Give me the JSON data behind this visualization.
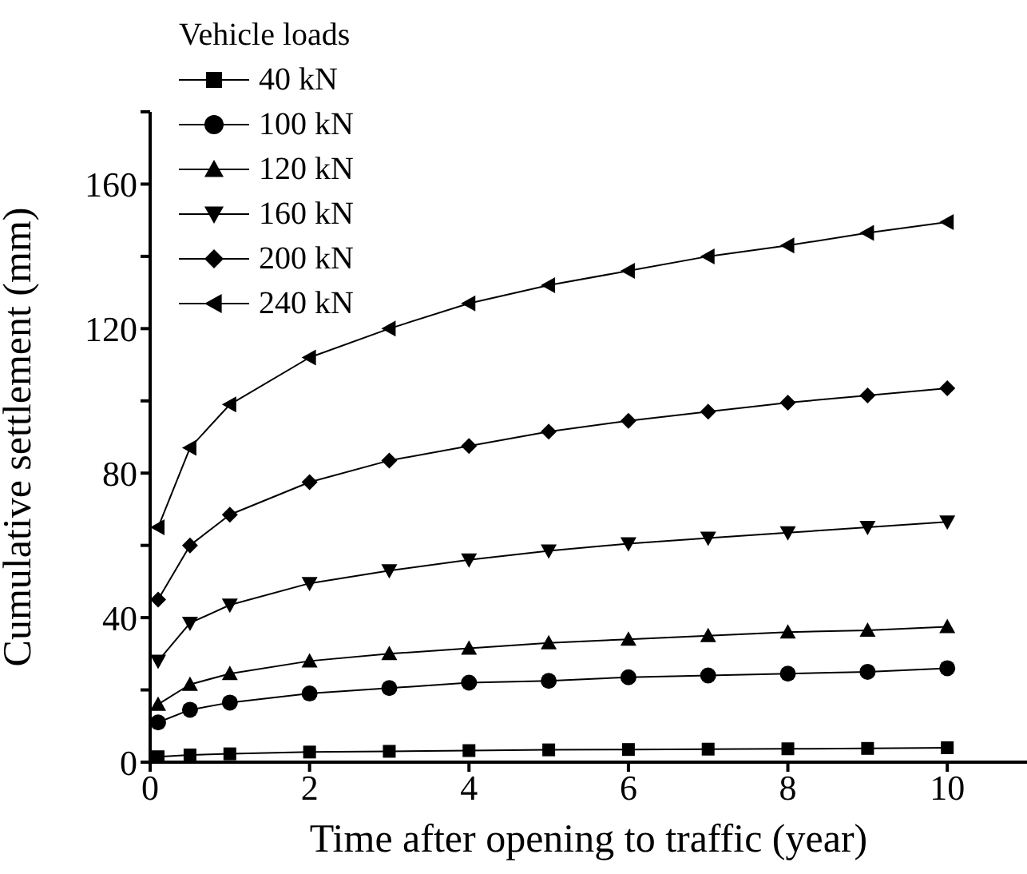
{
  "chart_data": {
    "type": "line",
    "xlabel": "Time after opening to traffic (year)",
    "ylabel": "Cumulative settlement (mm)",
    "legend_title": "Vehicle loads",
    "legend": "top left",
    "line_style": "solid",
    "x": [
      0.1,
      0.5,
      1,
      2,
      3,
      4,
      5,
      6,
      7,
      8,
      9,
      10
    ],
    "xlim": [
      0,
      11
    ],
    "xticks": [
      0,
      2,
      4,
      6,
      8,
      10
    ],
    "ylim": [
      0,
      180
    ],
    "yticks": [
      0,
      {
        "value": 20,
        "label": null
      },
      40,
      {
        "value": 60,
        "label": null
      },
      80,
      {
        "value": 100,
        "label": null
      },
      120,
      {
        "value": 140,
        "label": null
      },
      160,
      {
        "value": 180,
        "label": null
      }
    ],
    "series": [
      {
        "name": "40 kN",
        "color": "#000000",
        "marker": "square",
        "values": [
          1.5,
          2,
          2.3,
          2.8,
          3,
          3.2,
          3.4,
          3.5,
          3.6,
          3.7,
          3.8,
          4
        ]
      },
      {
        "name": "100 kN",
        "color": "#000000",
        "marker": "circle",
        "values": [
          11,
          14.5,
          16.5,
          19,
          20.5,
          22,
          22.5,
          23.5,
          24,
          24.5,
          25,
          26
        ]
      },
      {
        "name": "120 kN",
        "color": "#000000",
        "marker": "triangle",
        "values": [
          16,
          21.5,
          24.5,
          28,
          30,
          31.5,
          33,
          34,
          35,
          36,
          36.5,
          37.5
        ]
      },
      {
        "name": "160 kN",
        "color": "#000000",
        "marker": "triangle-down",
        "values": [
          28,
          38.5,
          43.5,
          49.5,
          53,
          56,
          58.5,
          60.5,
          62,
          63.5,
          65,
          66.5
        ]
      },
      {
        "name": "200 kN",
        "color": "#000000",
        "marker": "diamond",
        "values": [
          45,
          60,
          68.5,
          77.5,
          83.5,
          87.5,
          91.5,
          94.5,
          97,
          99.5,
          101.5,
          103.5
        ]
      },
      {
        "name": "240 kN",
        "color": "#000000",
        "marker": "triangle-left",
        "values": [
          65,
          87,
          99,
          112,
          120,
          127,
          132,
          136,
          140,
          143,
          146.5,
          149.5
        ]
      }
    ]
  }
}
